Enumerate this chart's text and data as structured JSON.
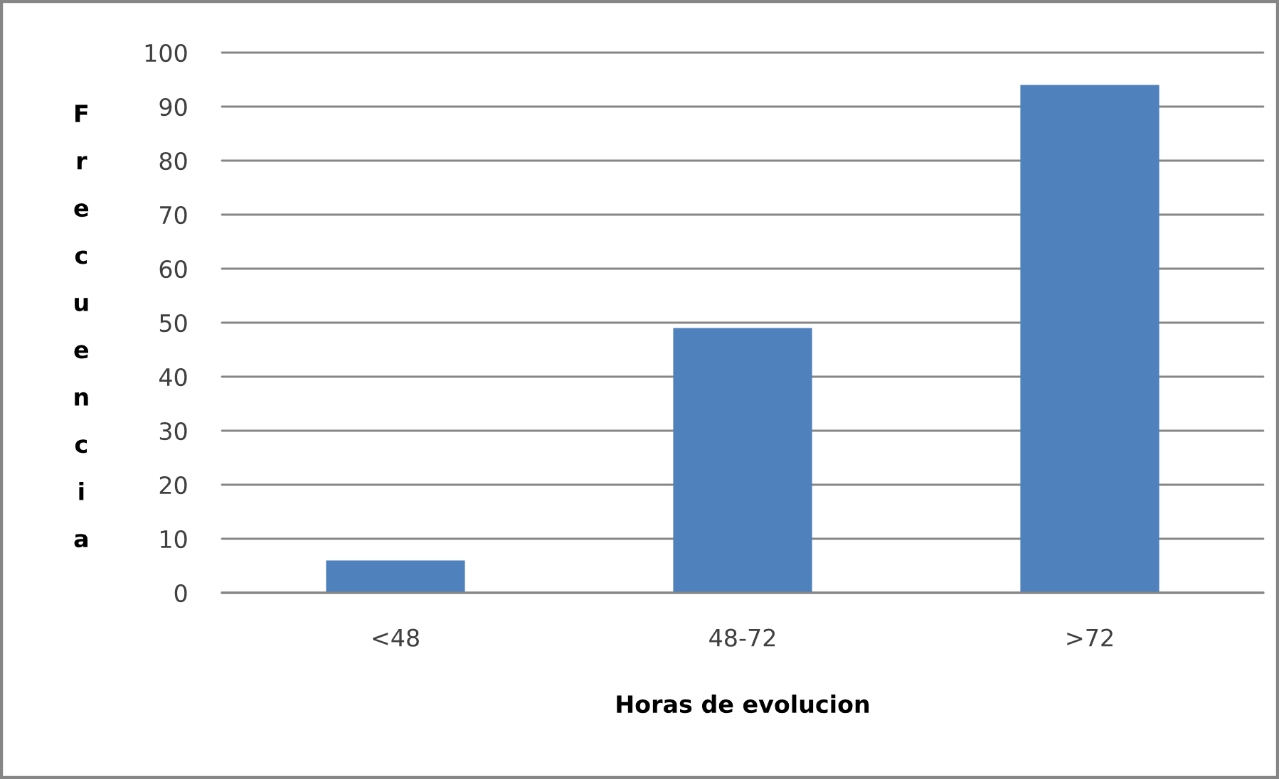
{
  "chart_data": {
    "type": "bar",
    "categories": [
      "<48",
      "48-72",
      ">72"
    ],
    "values": [
      6,
      49,
      94
    ],
    "color": "#4f81bd",
    "xlabel": "Horas de evolucion",
    "ylabel": "Frecuencia",
    "ylim": [
      0,
      100
    ],
    "yticks": [
      0,
      10,
      20,
      30,
      40,
      50,
      60,
      70,
      80,
      90,
      100
    ],
    "grid": "y"
  }
}
